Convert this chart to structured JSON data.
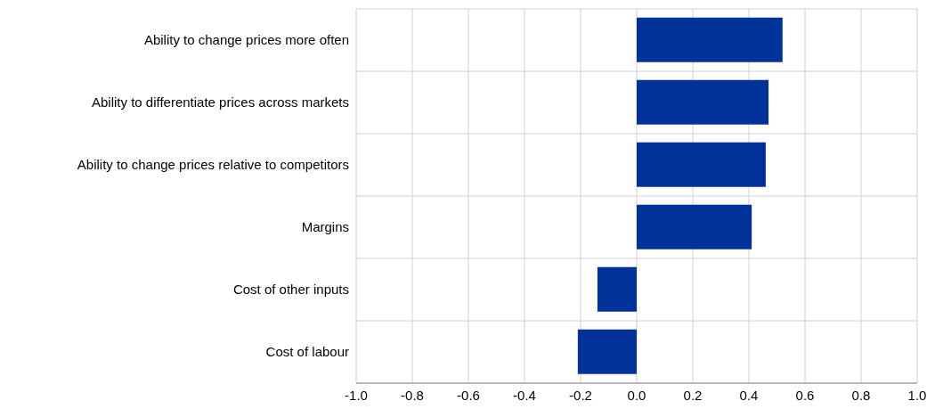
{
  "chart_data": {
    "type": "bar",
    "orientation": "horizontal",
    "categories": [
      "Ability to change prices more often",
      "Ability to differentiate prices across markets",
      "Ability to change prices relative to competitors",
      "Margins",
      "Cost of other inputs",
      "Cost of labour"
    ],
    "values": [
      0.52,
      0.47,
      0.46,
      0.41,
      -0.14,
      -0.21
    ],
    "color": "#003299",
    "xlim": [
      -1.0,
      1.0
    ],
    "xticks": [
      {
        "value": -1.0,
        "label": "-1.0"
      },
      {
        "value": -0.8,
        "label": "-0.8"
      },
      {
        "value": -0.6,
        "label": "-0.6"
      },
      {
        "value": -0.4,
        "label": "-0.4"
      },
      {
        "value": -0.2,
        "label": "-0.2"
      },
      {
        "value": 0,
        "label": "0.0"
      },
      {
        "value": 0.2,
        "label": "0.2"
      },
      {
        "value": 0.4,
        "label": "0.4"
      },
      {
        "value": 0.6,
        "label": "0.6"
      },
      {
        "value": 0.8,
        "label": "0.8"
      },
      {
        "value": 1.0,
        "label": "1.0"
      }
    ],
    "grid": true
  }
}
